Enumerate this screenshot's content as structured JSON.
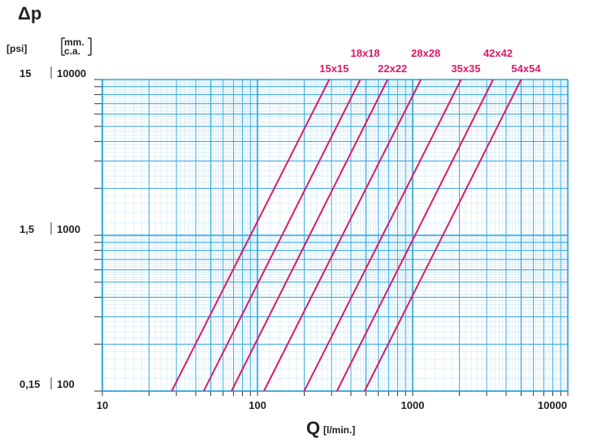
{
  "chart_data": {
    "type": "line",
    "title": "Δp",
    "xlabel": "Q",
    "xlabel_unit": "[l/min.]",
    "x_scale": "log",
    "y_scale": "log",
    "xlim": [
      10,
      10000
    ],
    "ylim": [
      100,
      10000
    ],
    "grid": true,
    "y_units": [
      "[psi]",
      "[mm. c.a.]"
    ],
    "y_unit_psi": "[psi]",
    "y_unit_mmca_line1": "mm.",
    "y_unit_mmca_line2": "c.a.",
    "x_ticks": [
      "10",
      "100",
      "1000",
      "10000"
    ],
    "y_ticks": [
      {
        "psi": "0,15",
        "mmca": "100"
      },
      {
        "psi": "1,5",
        "mmca": "1000"
      },
      {
        "psi": "15",
        "mmca": "10000"
      }
    ],
    "x_tick_values": [
      10,
      100,
      1000,
      10000
    ],
    "y_tick_values": [
      100,
      1000,
      10000
    ],
    "line_color": "#d81b6a",
    "grid_color": "#29a3dd",
    "series": [
      {
        "name": "15x15",
        "x": [
          28,
          290
        ],
        "y": [
          100,
          10000
        ]
      },
      {
        "name": "18x18",
        "x": [
          45,
          460
        ],
        "y": [
          100,
          10000
        ]
      },
      {
        "name": "22x22",
        "x": [
          68,
          690
        ],
        "y": [
          100,
          10000
        ]
      },
      {
        "name": "28x28",
        "x": [
          110,
          1130
        ],
        "y": [
          100,
          10000
        ]
      },
      {
        "name": "35x35",
        "x": [
          200,
          2050
        ],
        "y": [
          100,
          10000
        ]
      },
      {
        "name": "42x42",
        "x": [
          325,
          3300
        ],
        "y": [
          100,
          10000
        ]
      },
      {
        "name": "54x54",
        "x": [
          490,
          5000
        ],
        "y": [
          100,
          10000
        ]
      }
    ]
  }
}
